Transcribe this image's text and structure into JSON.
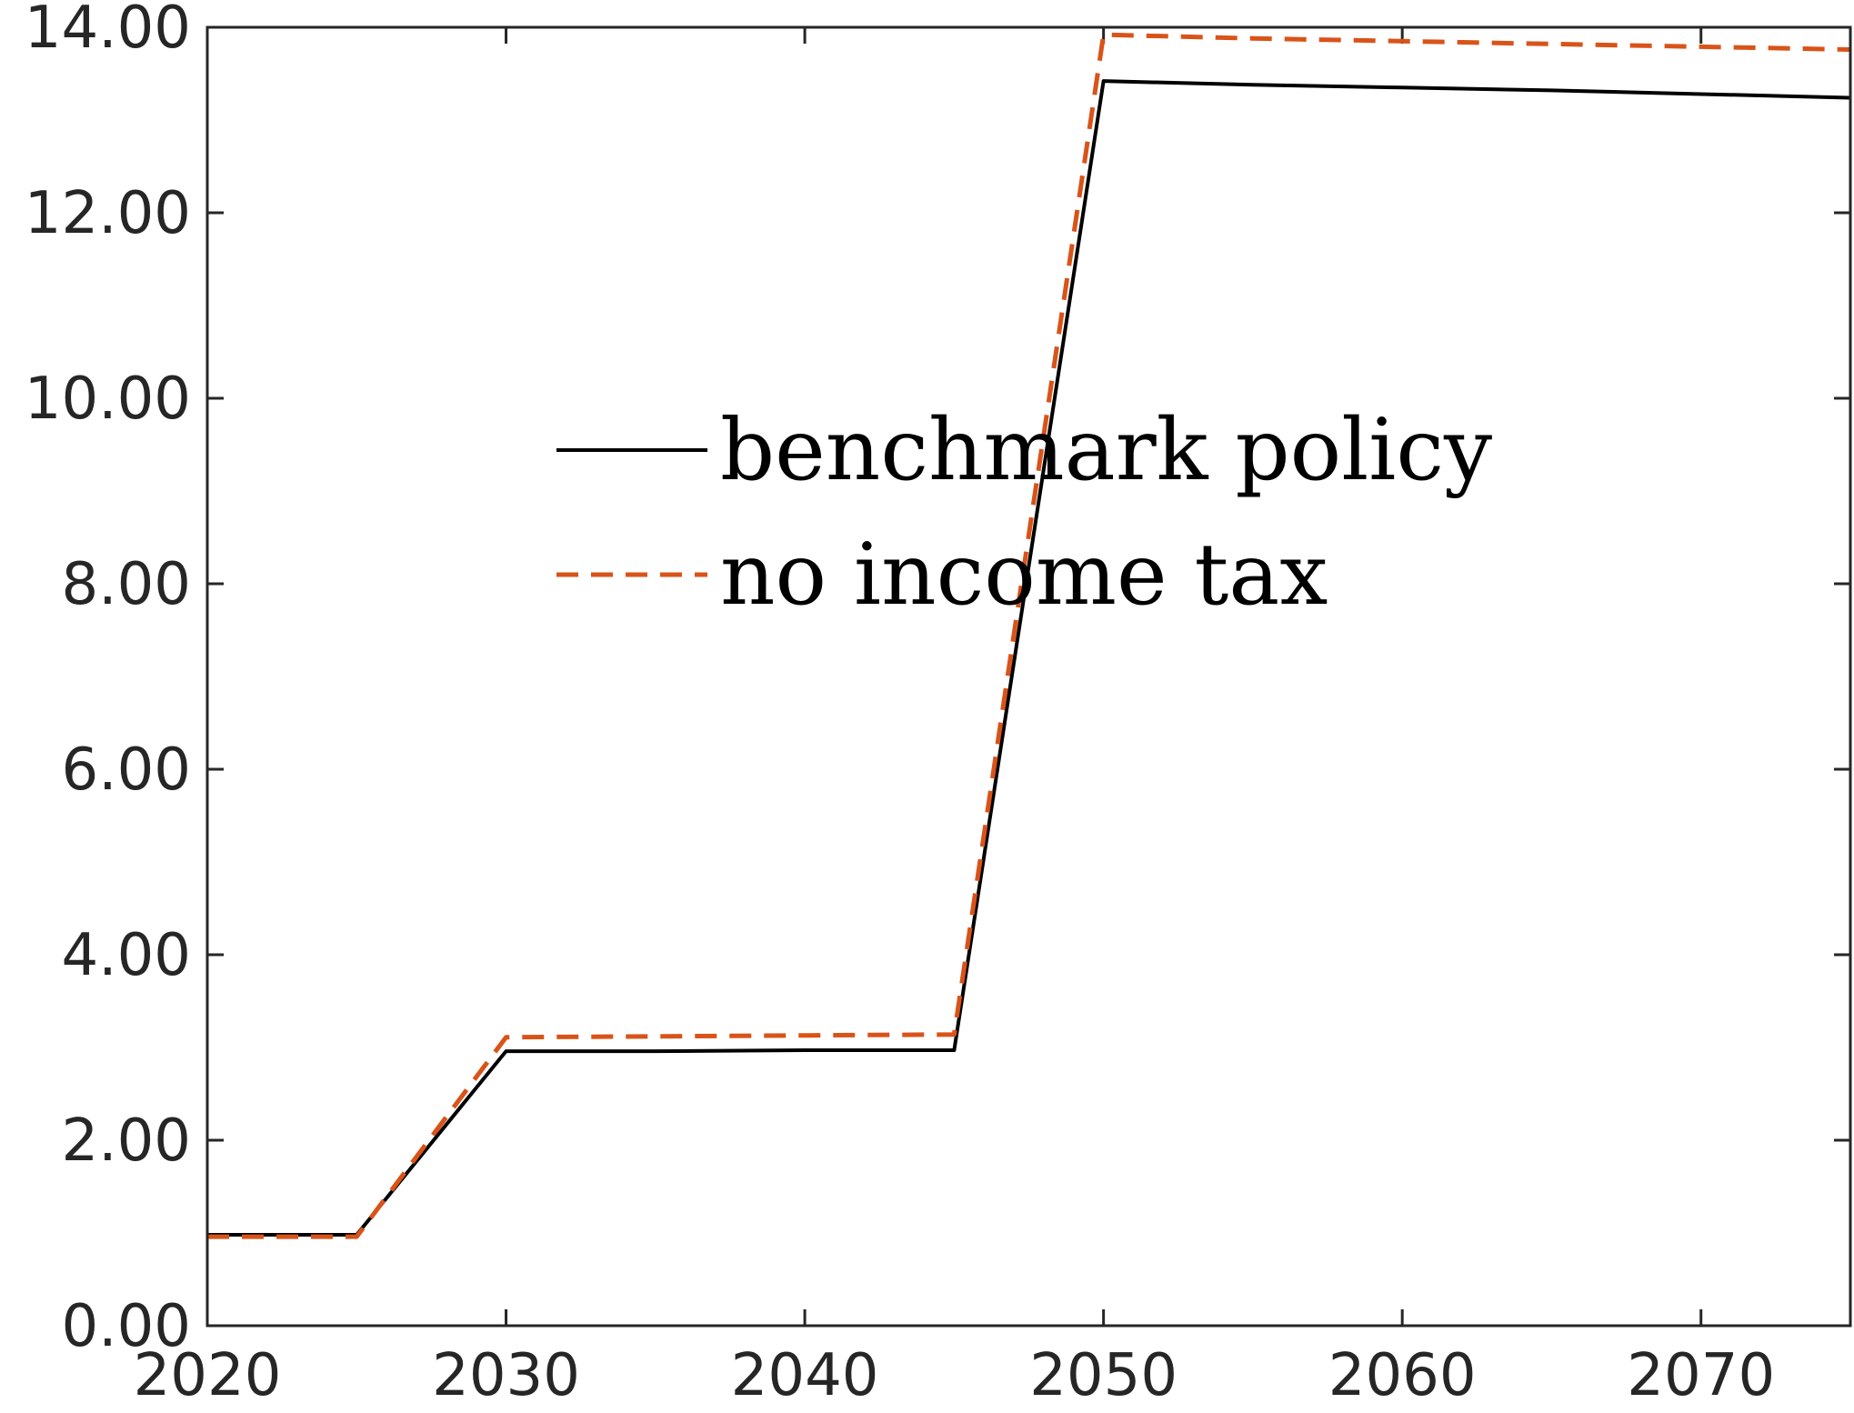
{
  "chart_data": {
    "type": "line",
    "title": "",
    "xlabel": "",
    "ylabel": "",
    "xlim": [
      2020,
      2075
    ],
    "ylim": [
      0,
      14
    ],
    "x_ticks": [
      "2020",
      "2030",
      "2040",
      "2050",
      "2060",
      "2070"
    ],
    "y_ticks": [
      "0.00",
      "2.00",
      "4.00",
      "6.00",
      "8.00",
      "10.00",
      "12.00",
      "14.00"
    ],
    "grid": false,
    "legend_position": "center",
    "series": [
      {
        "name": "benchmark policy",
        "color": "#000000",
        "style": "solid",
        "x": [
          2020,
          2025,
          2030,
          2035,
          2040,
          2045,
          2050,
          2055,
          2060,
          2065,
          2070,
          2075
        ],
        "y": [
          0.98,
          0.98,
          2.96,
          2.96,
          2.97,
          2.97,
          13.42,
          13.38,
          13.35,
          13.32,
          13.28,
          13.24
        ]
      },
      {
        "name": "no income tax",
        "color": "#D95319",
        "style": "dashed",
        "x": [
          2020,
          2025,
          2030,
          2035,
          2040,
          2045,
          2050,
          2055,
          2060,
          2065,
          2070,
          2075
        ],
        "y": [
          0.96,
          0.96,
          3.11,
          3.12,
          3.13,
          3.14,
          13.92,
          13.88,
          13.85,
          13.82,
          13.79,
          13.76
        ]
      }
    ]
  }
}
